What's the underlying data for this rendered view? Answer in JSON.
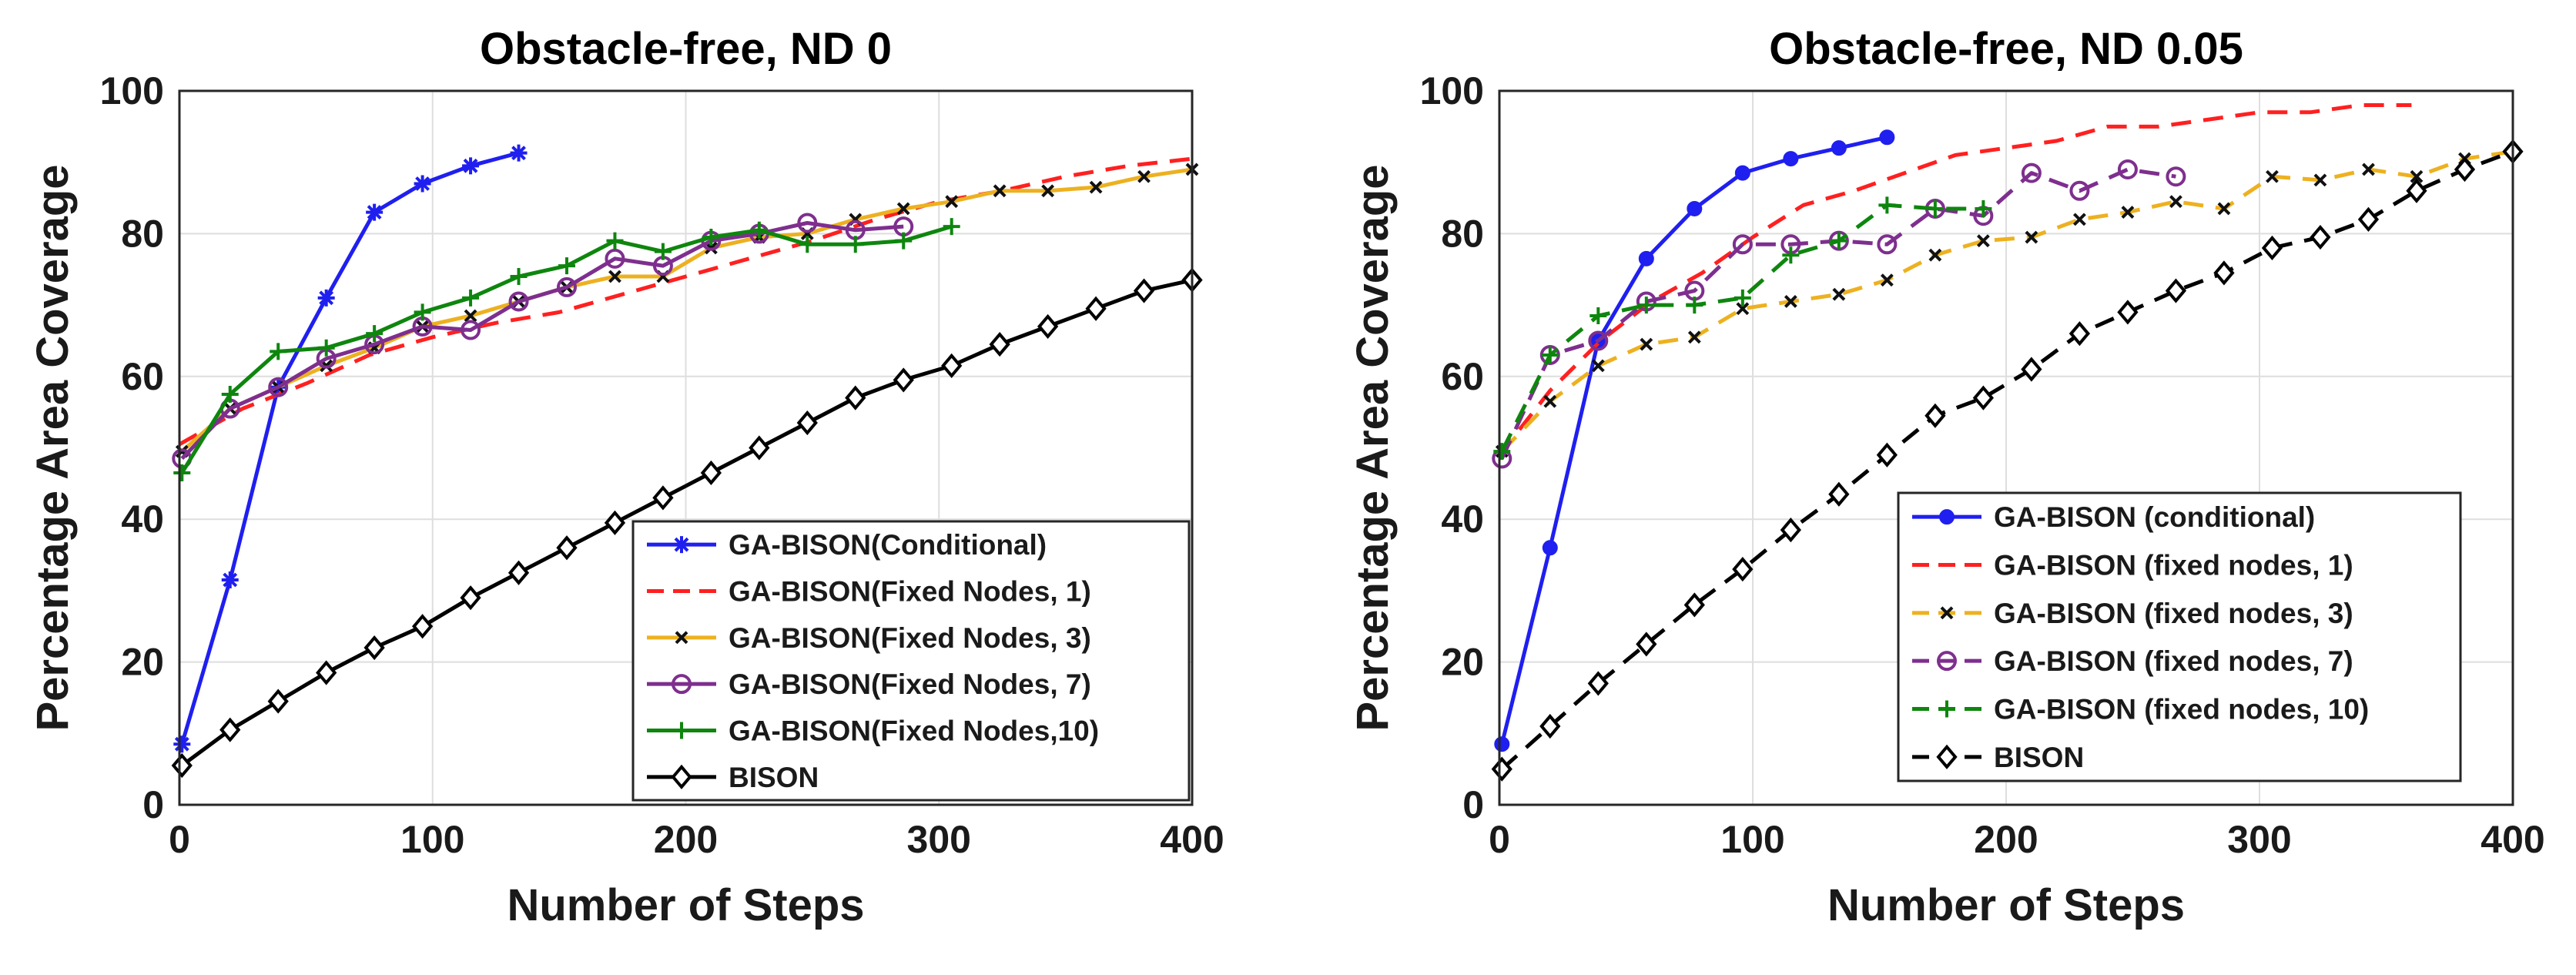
{
  "chart_data": [
    {
      "type": "line",
      "title": "Obstacle-free, ND 0",
      "xlabel": "Number of Steps",
      "ylabel": "Percentage Area Coverage",
      "xlim": [
        0,
        400
      ],
      "ylim": [
        0,
        100
      ],
      "xticks": [
        "0",
        "100",
        "200",
        "300",
        "400"
      ],
      "yticks": [
        "0",
        "20",
        "40",
        "60",
        "80",
        "100"
      ],
      "grid": true,
      "legend": "bottom-right",
      "series": [
        {
          "name": "GA-BISON(Conditional)",
          "color": "#1f1ff0",
          "dash": "solid",
          "marker": "asterisk",
          "x": [
            1,
            20,
            39,
            58,
            77,
            96,
            115,
            134
          ],
          "y": [
            8.5,
            31.5,
            58.5,
            71,
            83,
            87,
            89.5,
            91.3
          ]
        },
        {
          "name": "GA-BISON(Fixed Nodes, 1)",
          "color": "#ff2020",
          "dash": "dashed",
          "marker": "none",
          "x": [
            0,
            25,
            50,
            75,
            100,
            125,
            150,
            175,
            200,
            225,
            250,
            275,
            300,
            325,
            350,
            375,
            400
          ],
          "y": [
            50.5,
            55.5,
            59,
            63,
            65.5,
            67.5,
            69,
            71.5,
            74,
            76.5,
            79,
            82,
            84.5,
            86,
            88,
            89.5,
            90.5
          ]
        },
        {
          "name": "GA-BISON(Fixed Nodes, 3)",
          "color": "#edb120",
          "dash": "solid",
          "marker": "x",
          "x": [
            1,
            20,
            39,
            58,
            77,
            96,
            115,
            134,
            153,
            172,
            191,
            210,
            229,
            248,
            267,
            286,
            305,
            324,
            343,
            362,
            381,
            400
          ],
          "y": [
            49.5,
            55.5,
            58.5,
            61.5,
            64,
            67,
            68.5,
            70.5,
            72.5,
            74,
            74,
            78,
            79.5,
            80,
            82,
            83.5,
            84.5,
            86,
            86,
            86.5,
            88,
            89
          ]
        },
        {
          "name": "GA-BISON(Fixed Nodes, 7)",
          "color": "#7e2f8e",
          "dash": "solid",
          "marker": "circle",
          "x": [
            1,
            20,
            39,
            58,
            77,
            96,
            115,
            134,
            153,
            172,
            191,
            210,
            229,
            248,
            267,
            286
          ],
          "y": [
            48.5,
            55.5,
            58.5,
            62.5,
            64.5,
            67,
            66.5,
            70.5,
            72.5,
            76.5,
            75.5,
            79,
            80,
            81.5,
            80.5,
            81
          ]
        },
        {
          "name": "GA-BISON(Fixed Nodes,10)",
          "color": "#0e860e",
          "dash": "solid",
          "marker": "plus",
          "x": [
            1,
            20,
            39,
            58,
            77,
            96,
            115,
            134,
            153,
            172,
            191,
            210,
            229,
            248,
            267,
            286,
            305
          ],
          "y": [
            46.5,
            57.5,
            63.5,
            64,
            66,
            69,
            71,
            74,
            75.5,
            79,
            77.5,
            79.5,
            80.5,
            78.5,
            78.5,
            79,
            81
          ]
        },
        {
          "name": "BISON",
          "color": "#000000",
          "dash": "solid",
          "marker": "diamond",
          "x": [
            1,
            20,
            39,
            58,
            77,
            96,
            115,
            134,
            153,
            172,
            191,
            210,
            229,
            248,
            267,
            286,
            305,
            324,
            343,
            362,
            381,
            400
          ],
          "y": [
            5.5,
            10.5,
            14.5,
            18.5,
            22,
            25,
            29,
            32.5,
            36,
            39.5,
            43,
            46.5,
            50,
            53.5,
            57,
            59.5,
            61.5,
            64.5,
            67,
            69.5,
            72,
            73.5
          ]
        }
      ]
    },
    {
      "type": "line",
      "title": "Obstacle-free, ND 0.05",
      "xlabel": "Number of Steps",
      "ylabel": "Percentage Area Coverage",
      "xlim": [
        0,
        400
      ],
      "ylim": [
        0,
        100
      ],
      "xticks": [
        "0",
        "100",
        "200",
        "300",
        "400"
      ],
      "yticks": [
        "0",
        "20",
        "40",
        "60",
        "80",
        "100"
      ],
      "grid": true,
      "legend": "bottom-right",
      "series": [
        {
          "name": "GA-BISON (conditional)",
          "color": "#1f1ff0",
          "dash": "solid",
          "marker": "dot",
          "x": [
            1,
            20,
            39,
            58,
            77,
            96,
            115,
            134,
            153
          ],
          "y": [
            8.5,
            36,
            65,
            76.5,
            83.5,
            88.5,
            90.5,
            92,
            93.5
          ]
        },
        {
          "name": "GA-BISON (fixed nodes, 1)",
          "color": "#ff2020",
          "dash": "dashed",
          "marker": "none",
          "x": [
            0,
            20,
            40,
            60,
            80,
            100,
            120,
            140,
            160,
            180,
            200,
            220,
            240,
            260,
            280,
            300,
            320,
            340,
            360
          ],
          "y": [
            49,
            58,
            65,
            70.5,
            74.5,
            79.5,
            84,
            86,
            88.5,
            91,
            92,
            93,
            95,
            95,
            96,
            97,
            97,
            98,
            98
          ]
        },
        {
          "name": "GA-BISON (fixed nodes, 3)",
          "color": "#edb120",
          "dash": "dashed",
          "marker": "x",
          "x": [
            1,
            20,
            39,
            58,
            77,
            96,
            115,
            134,
            153,
            172,
            191,
            210,
            229,
            248,
            267,
            286,
            305,
            324,
            343,
            362,
            381,
            400
          ],
          "y": [
            49.5,
            56.5,
            61.5,
            64.5,
            65.5,
            69.5,
            70.5,
            71.5,
            73.5,
            77,
            79,
            79.5,
            82,
            83,
            84.5,
            83.5,
            88,
            87.5,
            89,
            88,
            90.5,
            91.5
          ]
        },
        {
          "name": "GA-BISON (fixed nodes, 7)",
          "color": "#7e2f8e",
          "dash": "dashed",
          "marker": "circle",
          "x": [
            1,
            20,
            39,
            58,
            77,
            96,
            115,
            134,
            153,
            172,
            191,
            210,
            229,
            248,
            267
          ],
          "y": [
            48.5,
            63,
            65,
            70.5,
            72,
            78.5,
            78.5,
            79,
            78.5,
            83.5,
            82.5,
            88.5,
            86,
            89,
            88
          ]
        },
        {
          "name": "GA-BISON (fixed nodes, 10)",
          "color": "#0e860e",
          "dash": "dashed",
          "marker": "plus",
          "x": [
            1,
            20,
            39,
            58,
            77,
            96,
            115,
            134,
            153,
            172,
            191
          ],
          "y": [
            49.5,
            63,
            68.5,
            70,
            70,
            71,
            77,
            79,
            84,
            83.5,
            83.5
          ]
        },
        {
          "name": "BISON",
          "color": "#000000",
          "dash": "dashed",
          "marker": "diamond",
          "x": [
            1,
            20,
            39,
            58,
            77,
            96,
            115,
            134,
            153,
            172,
            191,
            210,
            229,
            248,
            267,
            286,
            305,
            324,
            343,
            362,
            381,
            400
          ],
          "y": [
            5,
            11,
            17,
            22.5,
            28,
            33,
            38.5,
            43.5,
            49,
            54.5,
            57,
            61,
            66,
            69,
            72,
            74.5,
            78,
            79.5,
            82,
            86,
            89,
            91.5
          ]
        }
      ]
    }
  ]
}
